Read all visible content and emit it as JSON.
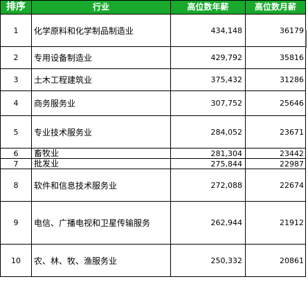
{
  "headers": {
    "rank": "排序",
    "industry": "行业",
    "annual": "高位数年薪",
    "monthly": "高位数月薪"
  },
  "rows": [
    {
      "rank": "1",
      "industry": "化学原料和化学制品制造业",
      "annual": "434,148",
      "monthly": "36179"
    },
    {
      "rank": "2",
      "industry": "专用设备制造业",
      "annual": "429,792",
      "monthly": "35816"
    },
    {
      "rank": "3",
      "industry": "土木工程建筑业",
      "annual": "375,432",
      "monthly": "31286"
    },
    {
      "rank": "4",
      "industry": "商务服务业",
      "annual": "307,752",
      "monthly": "25646"
    },
    {
      "rank": "5",
      "industry": "专业技术服务业",
      "annual": "284,052",
      "monthly": "23671"
    },
    {
      "rank": "6",
      "industry": "畜牧业",
      "annual": "281,304",
      "monthly": "23442"
    },
    {
      "rank": "7",
      "industry": "批发业",
      "annual": "275,844",
      "monthly": "22987"
    },
    {
      "rank": "8",
      "industry": "软件和信息技术服务业",
      "annual": "272,088",
      "monthly": "22674"
    },
    {
      "rank": "9",
      "industry": "电信、广播电视和卫星传输服务",
      "annual": "262,944",
      "monthly": "21912"
    },
    {
      "rank": "10",
      "industry": "农、林、牧、渔服务业",
      "annual": "250,332",
      "monthly": "20861"
    }
  ]
}
